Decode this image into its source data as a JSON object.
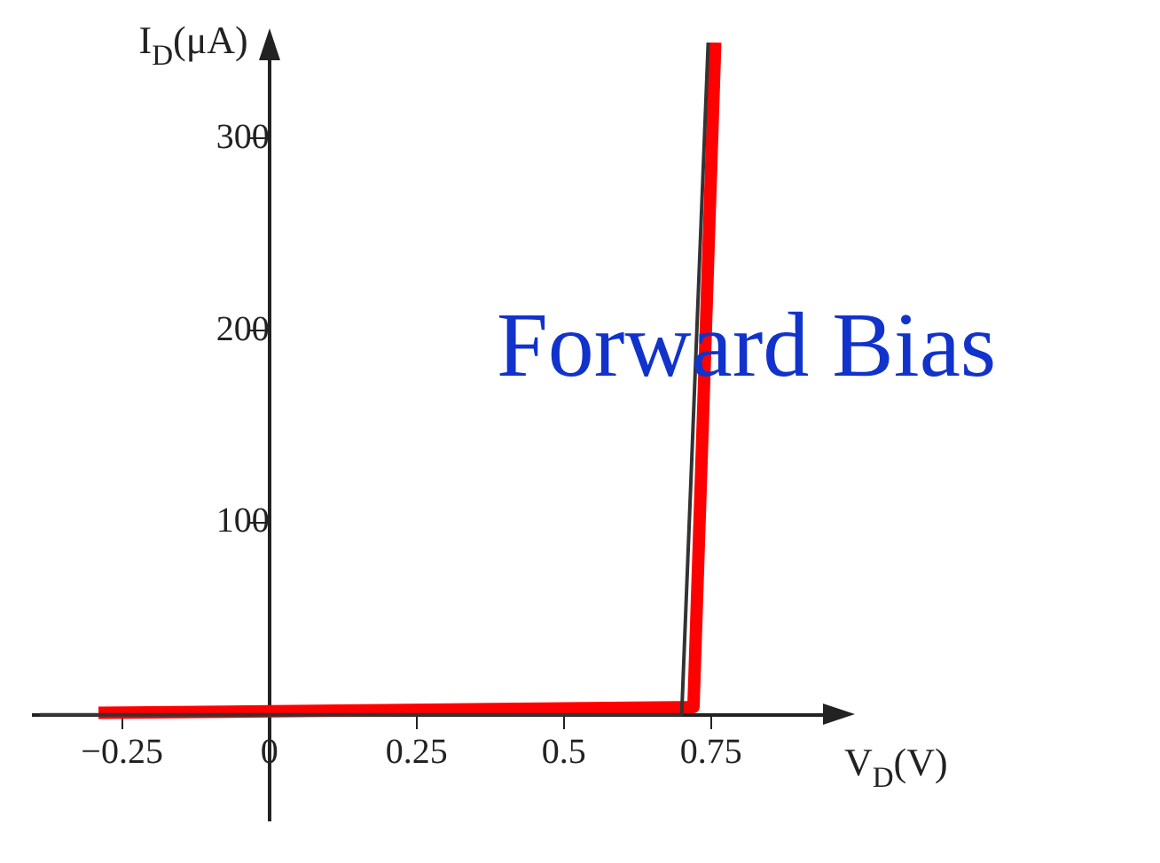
{
  "chart_data": {
    "type": "line",
    "xlabel": "V$_{D}$(V)",
    "ylabel": "I$_{D}$(μA)",
    "xlim": [
      -0.4,
      0.97
    ],
    "ylim": [
      -55,
      350
    ],
    "xticks": [
      {
        "value": -0.25,
        "label": "−0.25"
      },
      0,
      0.25,
      0.5,
      0.75
    ],
    "yticks": [
      100,
      200,
      300
    ],
    "grid": false,
    "legend": false,
    "marker": "none",
    "line_style": "solid",
    "series": [
      {
        "color": "#333333",
        "x": [
          -0.39,
          0.7,
          0.745
        ],
        "values": [
          0,
          0,
          350
        ]
      },
      {
        "color": "#ff0000",
        "x": [
          -0.29,
          0.72,
          0.757
        ],
        "values": [
          1,
          4,
          350
        ]
      }
    ],
    "annotations": [
      "Forward Bias"
    ]
  }
}
